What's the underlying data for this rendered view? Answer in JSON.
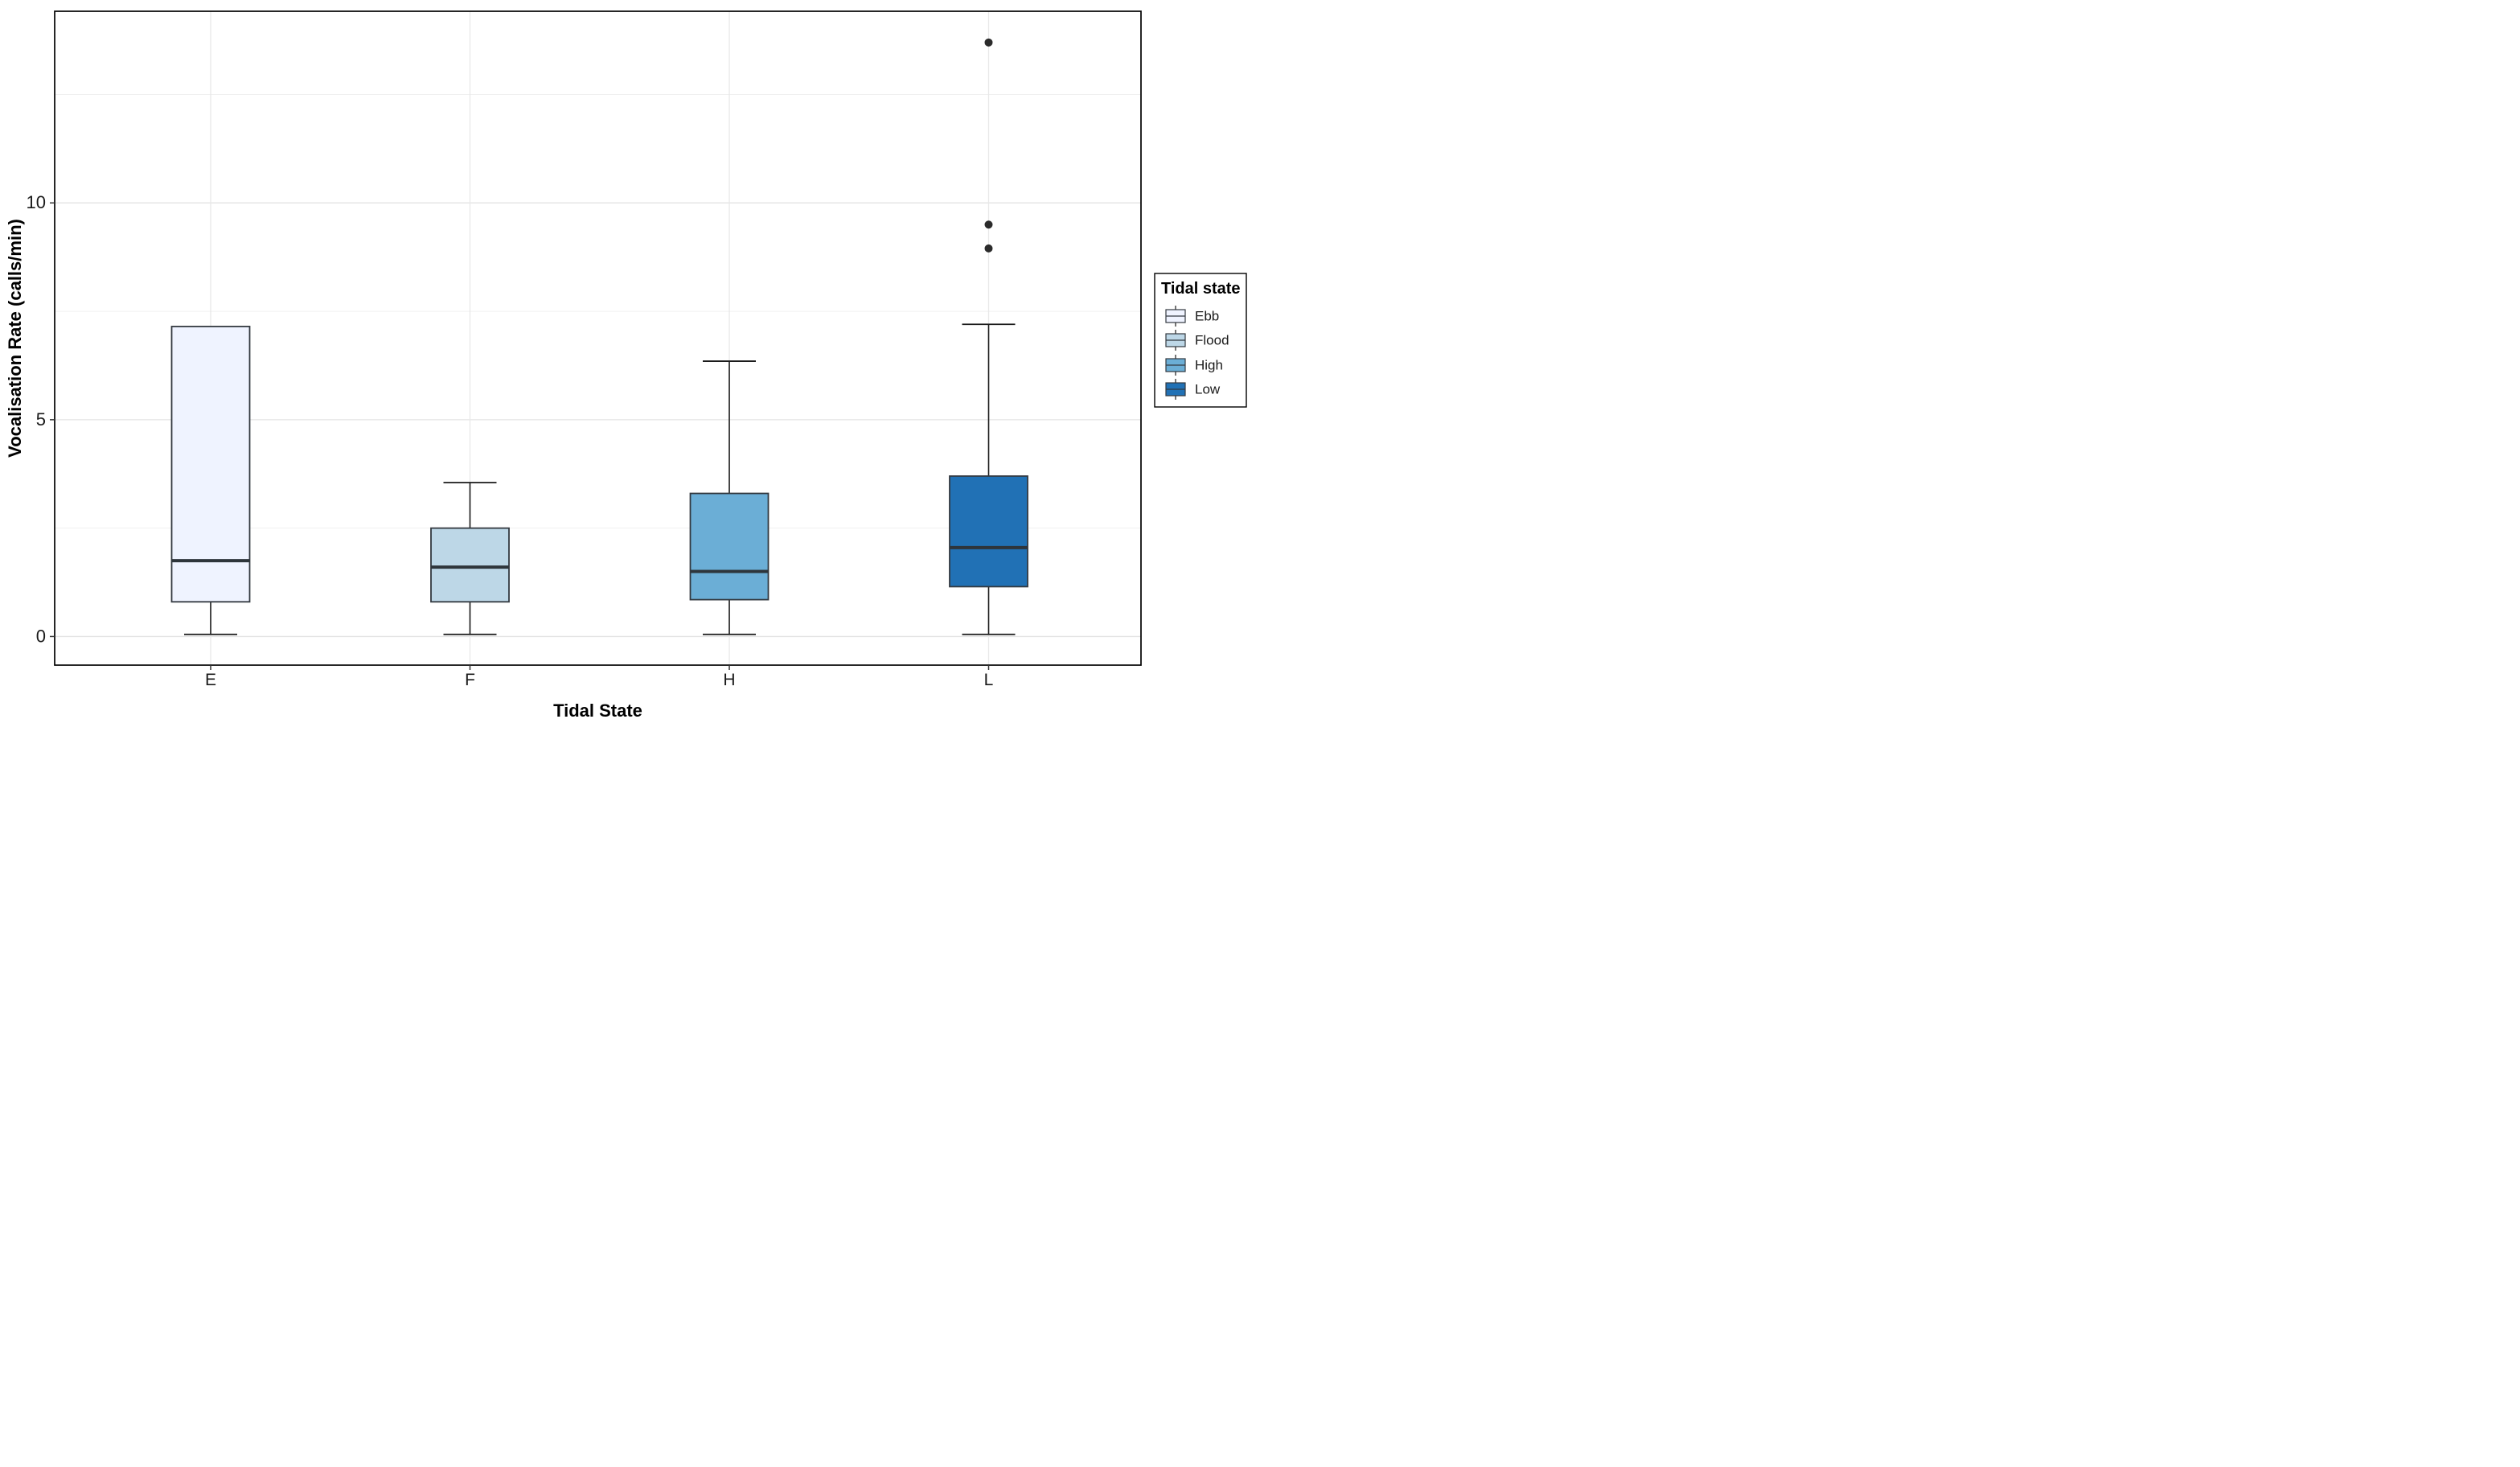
{
  "figure": {
    "y_axis": {
      "title": "Vocalisation Rate (calls/min)",
      "tick_labels": [
        "0",
        "5",
        "10"
      ],
      "tick_values": [
        0,
        5,
        10
      ]
    },
    "x_axis": {
      "title": "Tidal State",
      "tick_labels": [
        "E",
        "F",
        "H",
        "L"
      ]
    },
    "legend": {
      "title": "Tidal state",
      "entries": [
        {
          "label": "Ebb",
          "color": "#EFF3FF"
        },
        {
          "label": "Flood",
          "color": "#BDD7E7"
        },
        {
          "label": "High",
          "color": "#6BAED6"
        },
        {
          "label": "Low",
          "color": "#2171B5"
        }
      ]
    }
  },
  "chart_data": {
    "type": "boxplot",
    "title": "",
    "xlabel": "Tidal State",
    "ylabel": "Vocalisation Rate (calls/min)",
    "categories": [
      "E",
      "F",
      "H",
      "L"
    ],
    "ylim": [
      -0.66,
      14.42
    ],
    "y_major_gridlines": [
      0,
      5,
      10
    ],
    "y_minor_gridlines": [
      2.5,
      7.5,
      12.5
    ],
    "y_tick_values": [
      0,
      5,
      10
    ],
    "y_tick_labels": [
      "0",
      "5",
      "10"
    ],
    "grid": "on",
    "legend_position": "right",
    "legend_title": "Tidal state",
    "series": [
      {
        "category": "E",
        "legend_label": "Ebb",
        "fill": "#EFF3FF",
        "lower_whisker": 0.05,
        "q1": 0.8,
        "median": 1.75,
        "q3": 7.15,
        "upper_whisker": 7.15,
        "outliers": []
      },
      {
        "category": "F",
        "legend_label": "Flood",
        "fill": "#BDD7E7",
        "lower_whisker": 0.05,
        "q1": 0.8,
        "median": 1.6,
        "q3": 2.5,
        "upper_whisker": 3.55,
        "outliers": []
      },
      {
        "category": "H",
        "legend_label": "High",
        "fill": "#6BAED6",
        "lower_whisker": 0.05,
        "q1": 0.85,
        "median": 1.5,
        "q3": 3.3,
        "upper_whisker": 6.35,
        "outliers": []
      },
      {
        "category": "L",
        "legend_label": "Low",
        "fill": "#2171B5",
        "lower_whisker": 0.05,
        "q1": 1.15,
        "median": 2.05,
        "q3": 3.7,
        "upper_whisker": 7.2,
        "outliers": [
          13.7,
          9.5,
          8.95
        ]
      }
    ],
    "style": {
      "box_border_color": "#333940",
      "median_color": "#2e353b",
      "whisker_color": "#1a1a1a",
      "outlier_color": "#2b2b2b",
      "panel_border_color": "#000000",
      "panel_background": "#ffffff",
      "grid_major_color": "#e3e3e3",
      "grid_minor_color": "#f0f0f0",
      "grid_vertical_color": "#e8e8e8",
      "axis_text_color": "#1a1a1a",
      "axis_title_color": "#000000",
      "legend_border_color": "#000000",
      "legend_background": "#ffffff"
    }
  }
}
